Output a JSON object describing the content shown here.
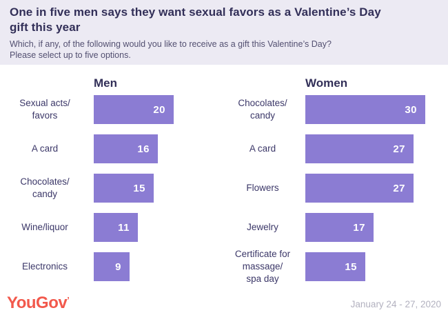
{
  "header": {
    "title": "One in five men says they want sexual favors as a Valentine’s Day\ngift this year",
    "subtitle": "Which, if any, of the following would you like to receive as a gift this Valentine’s Day?\nPlease select up to five options."
  },
  "chart_data": {
    "type": "bar",
    "orientation": "horizontal",
    "unit": "percent of respondents",
    "value_labels_shown": true,
    "axis_shown": false,
    "grid": false,
    "bar_color": "#8b7cd3",
    "value_label_color": "#ffffff",
    "panels": [
      {
        "title": "Men",
        "categories": [
          "Sexual acts/\nfavors",
          "A card",
          "Chocolates/\ncandy",
          "Wine/liquor",
          "Electronics"
        ],
        "values": [
          20,
          16,
          15,
          11,
          9
        ]
      },
      {
        "title": "Women",
        "categories": [
          "Chocolates/\ncandy",
          "A card",
          "Flowers",
          "Jewelry",
          "Certificate for\nmassage/\nspa day"
        ],
        "values": [
          30,
          27,
          27,
          17,
          15
        ]
      }
    ]
  },
  "footer": {
    "logo": "YouGov",
    "logo_mark": "’",
    "date_range": "January 24 - 27, 2020"
  },
  "colors": {
    "header_background": "#eceaf3",
    "title_text": "#322f58",
    "subtitle_text": "#524f70",
    "label_text": "#3b3768",
    "bar": "#8b7cd3",
    "logo_red": "#f2594c",
    "date_gray": "#b2b1bf"
  }
}
